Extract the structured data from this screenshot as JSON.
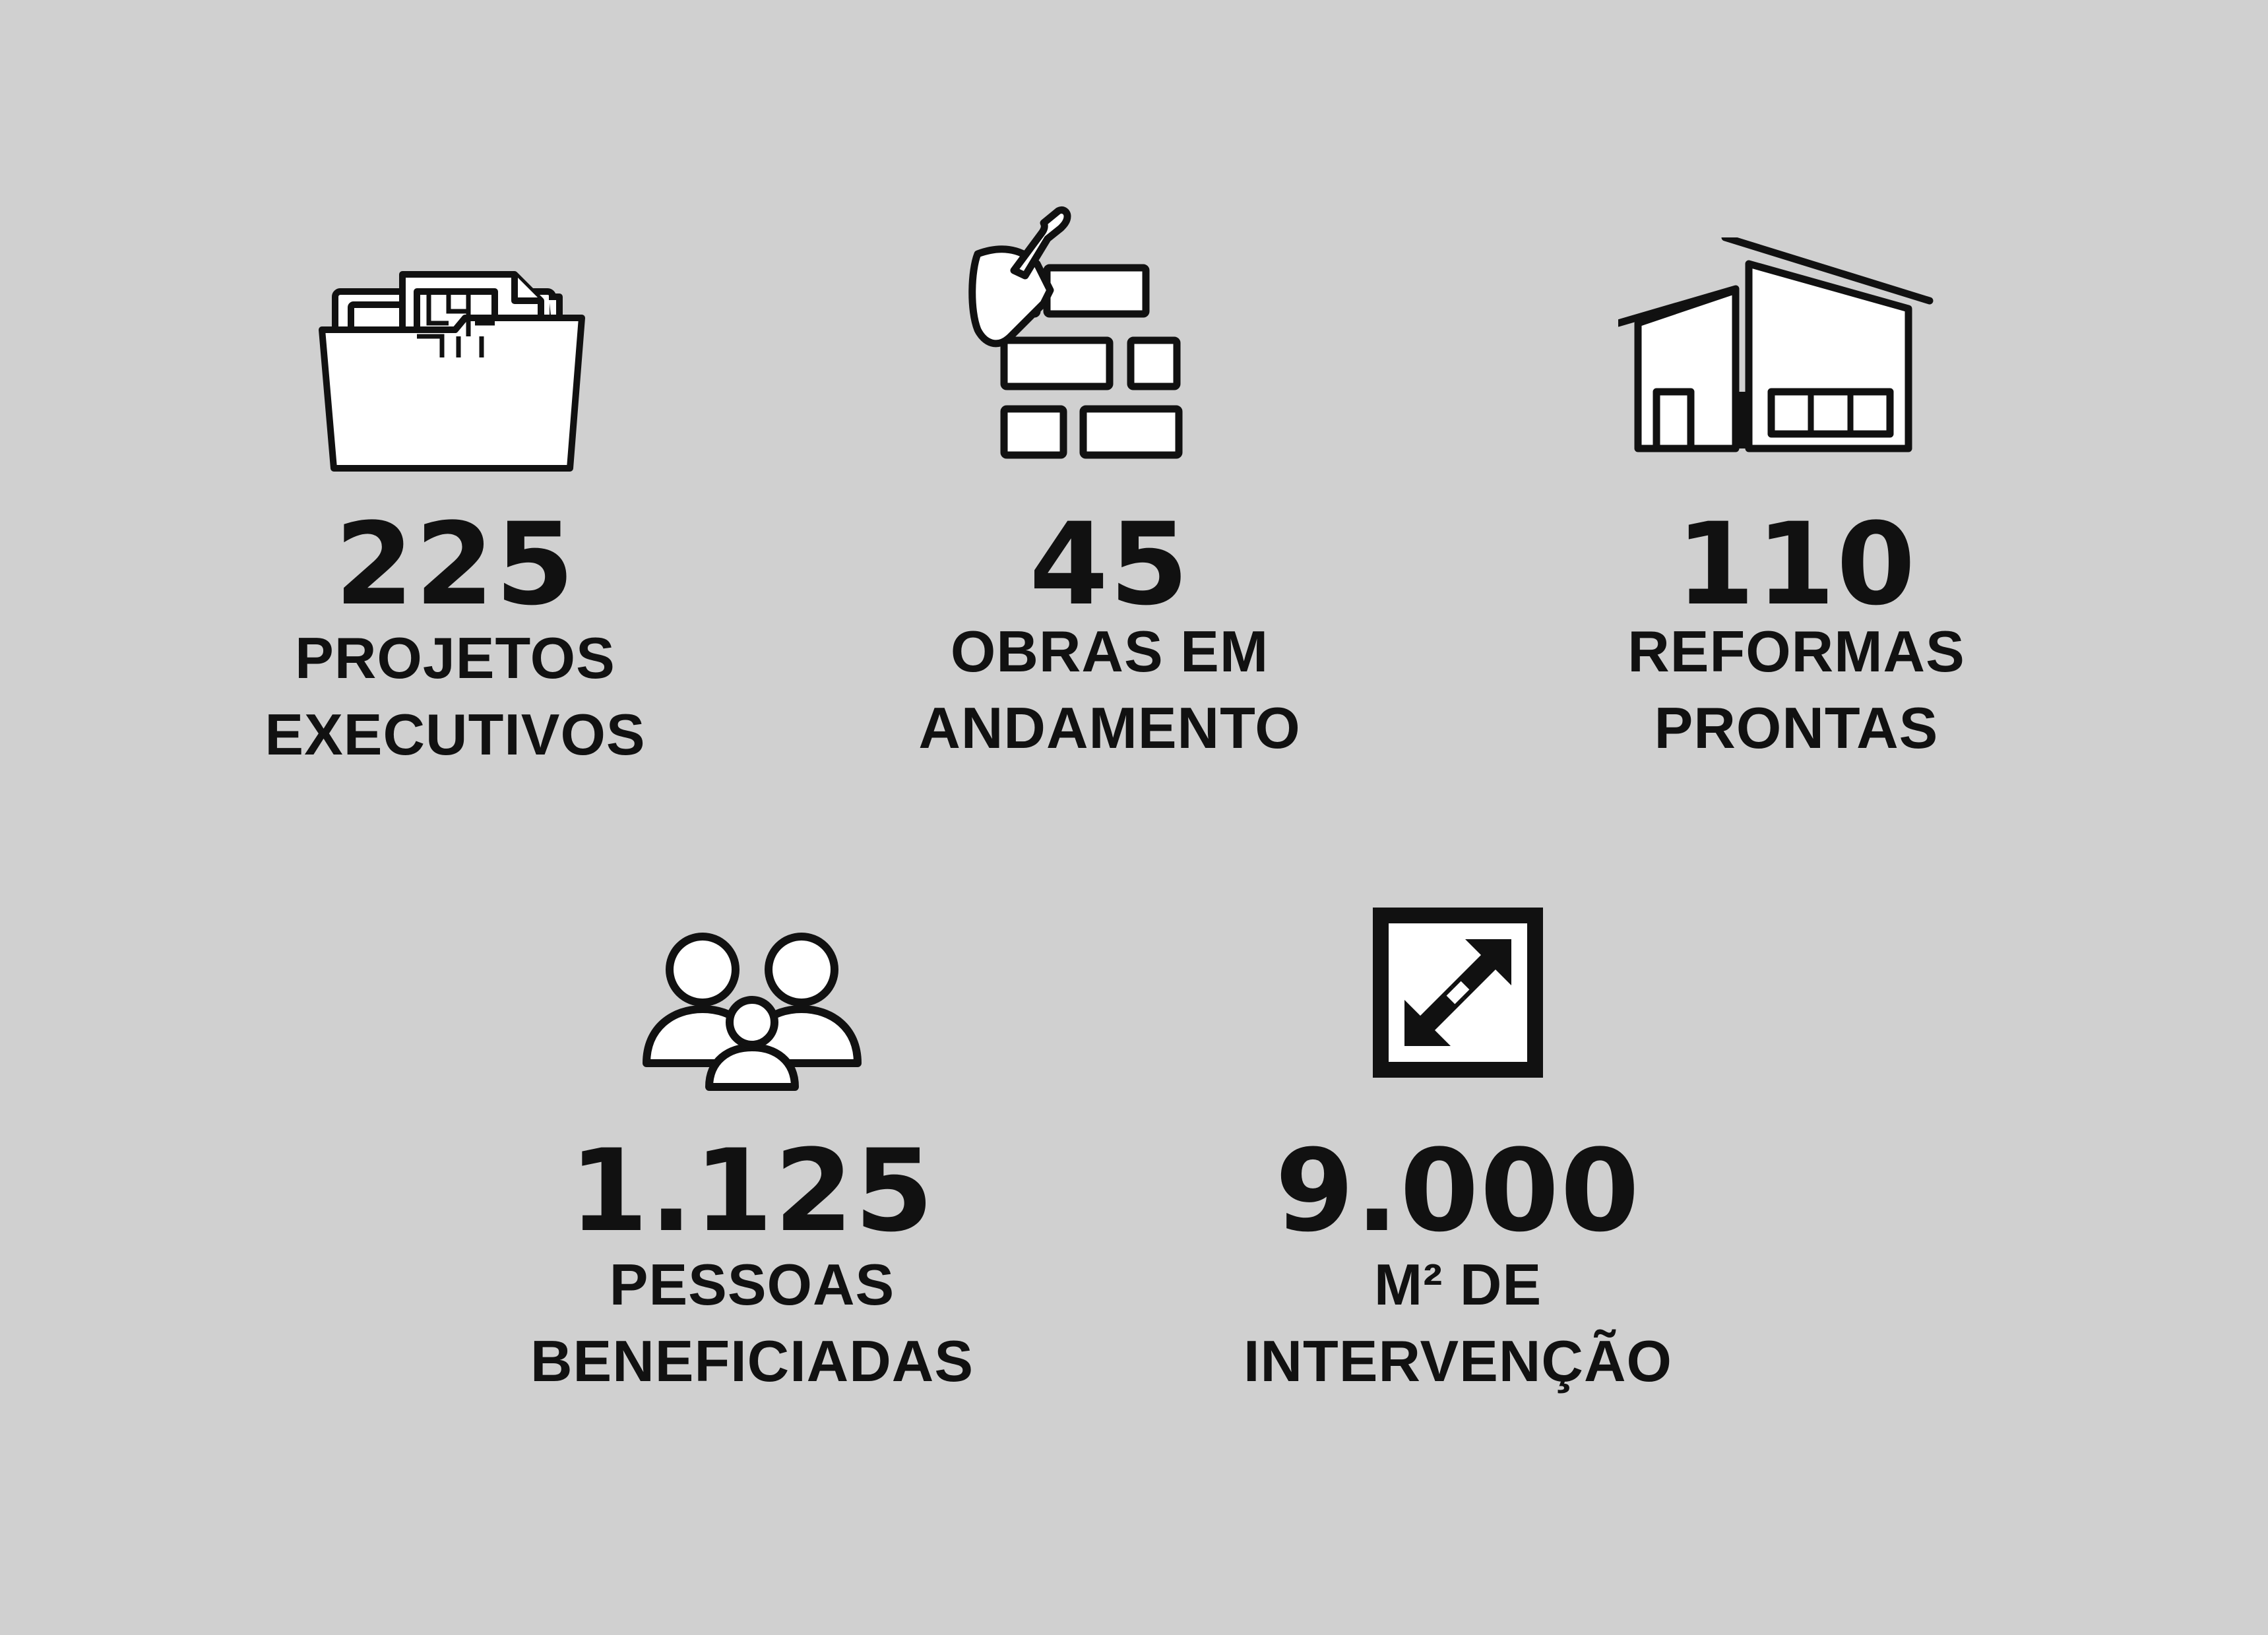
{
  "stats": [
    {
      "icon": "folder-blueprint-icon",
      "number": "225",
      "label_line1": "PROJETOS",
      "label_line2": "EXECUTIVOS"
    },
    {
      "icon": "bricks-trowel-icon",
      "number": "45",
      "label_line1": "OBRAS EM",
      "label_line2": "ANDAMENTO"
    },
    {
      "icon": "house-icon",
      "number": "110",
      "label_line1": "REFORMAS",
      "label_line2": "PRONTAS"
    },
    {
      "icon": "people-group-icon",
      "number": "1.125",
      "label_line1": "PESSOAS",
      "label_line2": "BENEFICIADAS"
    },
    {
      "icon": "expand-area-icon",
      "number": "9.000",
      "label_line1": "M² DE",
      "label_line2": "INTERVENÇÃO"
    }
  ],
  "colors": {
    "background": "#d0d0d0",
    "foreground": "#111111",
    "icon_fill": "#ffffff"
  }
}
